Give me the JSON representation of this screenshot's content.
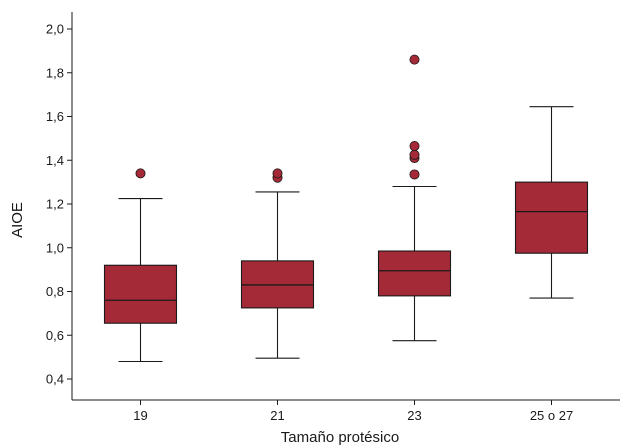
{
  "chart_data": {
    "type": "box",
    "xlabel": "Tamaño protésico",
    "ylabel": "AIOE",
    "ylim": [
      0.4,
      2.0
    ],
    "yticks": [
      0.4,
      0.6,
      0.8,
      1.0,
      1.2,
      1.4,
      1.6,
      1.8,
      2.0
    ],
    "ytick_labels": [
      "0,4",
      "0,6",
      "0,8",
      "1,0",
      "1,2",
      "1,4",
      "1,6",
      "1,8",
      "2,0"
    ],
    "categories": [
      "19",
      "21",
      "23",
      "25 o 27"
    ],
    "boxes": [
      {
        "category": "19",
        "whisker_low": 0.48,
        "q1": 0.655,
        "median": 0.76,
        "q3": 0.92,
        "whisker_high": 1.225,
        "outliers": [
          1.34
        ]
      },
      {
        "category": "21",
        "whisker_low": 0.495,
        "q1": 0.725,
        "median": 0.83,
        "q3": 0.94,
        "whisker_high": 1.255,
        "outliers": [
          1.32,
          1.34
        ]
      },
      {
        "category": "23",
        "whisker_low": 0.575,
        "q1": 0.78,
        "median": 0.895,
        "q3": 0.985,
        "whisker_high": 1.28,
        "outliers": [
          1.335,
          1.41,
          1.425,
          1.465,
          1.86
        ]
      },
      {
        "category": "25 o 27",
        "whisker_low": 0.77,
        "q1": 0.975,
        "median": 1.165,
        "q3": 1.3,
        "whisker_high": 1.645,
        "outliers": []
      }
    ],
    "box_color": "#a52a37",
    "grid": false
  }
}
